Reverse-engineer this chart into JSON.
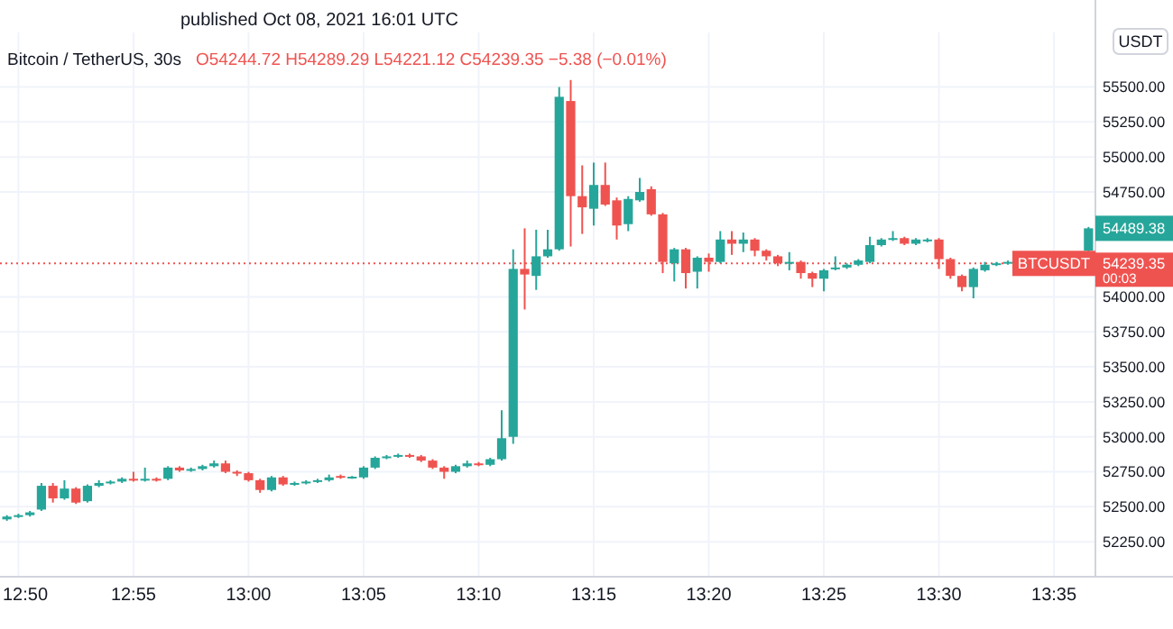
{
  "chart_data": {
    "type": "candlestick",
    "title": "Bitcoin / TetherUS, 30s",
    "subtitle": "O54244.72 H54289.29 L54221.12 C54239.35 −5.38 (−0.01%)",
    "ylabel": "USDT",
    "categories": [
      null,
      "12:50",
      null,
      null,
      null,
      null,
      null,
      null,
      null,
      null,
      null,
      "12:55",
      null,
      null,
      null,
      null,
      null,
      null,
      null,
      null,
      null,
      "13:00",
      null,
      null,
      null,
      null,
      null,
      null,
      null,
      null,
      null,
      "13:05",
      null,
      null,
      null,
      null,
      null,
      null,
      null,
      null,
      null,
      "13:10",
      null,
      null,
      null,
      null,
      null,
      null,
      null,
      null,
      null,
      "13:15",
      null,
      null,
      null,
      null,
      null,
      null,
      null,
      null,
      null,
      "13:20",
      null,
      null,
      null,
      null,
      null,
      null,
      null,
      null,
      null,
      "13:25",
      null,
      null,
      null,
      null,
      null,
      null,
      null,
      null,
      null,
      "13:30",
      null,
      null,
      null,
      null,
      null,
      null,
      null,
      null,
      null,
      "13:35",
      null,
      null,
      null
    ],
    "colors": [
      "#26a69a",
      "#26a69a",
      "#26a69a",
      "#26a69a",
      "#ef5350",
      "#26a69a",
      "#ef5350",
      "#26a69a",
      "#26a69a",
      "#26a69a",
      "#26a69a",
      "#ef5350",
      "#26a69a",
      "#ef5350",
      "#26a69a",
      "#ef5350",
      "#26a69a",
      "#26a69a",
      "#26a69a",
      "#ef5350",
      "#ef5350",
      "#ef5350",
      "#ef5350",
      "#26a69a",
      "#ef5350",
      "#26a69a",
      "#26a69a",
      "#26a69a",
      "#26a69a",
      "#ef5350",
      "#26a69a",
      "#26a69a",
      "#26a69a",
      "#26a69a",
      "#26a69a",
      "#ef5350",
      "#ef5350",
      "#ef5350",
      "#ef5350",
      "#26a69a",
      "#26a69a",
      "#ef5350",
      "#26a69a",
      "#26a69a",
      "#26a69a",
      "#ef5350",
      "#26a69a",
      "#26a69a",
      "#26a69a",
      "#ef5350",
      "#ef5350",
      "#26a69a",
      "#ef5350",
      "#ef5350",
      "#26a69a",
      "#26a69a",
      "#ef5350",
      "#ef5350",
      "#26a69a",
      "#ef5350",
      "#26a69a",
      "#ef5350",
      "#26a69a",
      "#ef5350",
      "#26a69a",
      "#ef5350",
      "#ef5350",
      "#ef5350",
      "#26a69a",
      "#ef5350",
      "#ef5350",
      "#26a69a",
      "#26a69a",
      "#26a69a",
      "#26a69a",
      "#26a69a",
      "#26a69a",
      "#26a69a",
      "#ef5350",
      "#26a69a",
      "#26a69a",
      "#ef5350",
      "#ef5350",
      "#ef5350",
      "#26a69a",
      "#26a69a",
      "#26a69a",
      "#26a69a",
      null,
      null,
      null,
      null,
      null,
      null,
      "#26a69a"
    ],
    "ohlc": [
      [
        52410,
        52440,
        52400,
        52430
      ],
      [
        52430,
        52450,
        52420,
        52440
      ],
      [
        52440,
        52470,
        52430,
        52460
      ],
      [
        52480,
        52670,
        52470,
        52650
      ],
      [
        52650,
        52670,
        52530,
        52560
      ],
      [
        52560,
        52690,
        52550,
        52630
      ],
      [
        52630,
        52640,
        52520,
        52530
      ],
      [
        52540,
        52660,
        52530,
        52650
      ],
      [
        52650,
        52690,
        52640,
        52670
      ],
      [
        52670,
        52690,
        52660,
        52680
      ],
      [
        52680,
        52710,
        52670,
        52700
      ],
      [
        52700,
        52750,
        52680,
        52690
      ],
      [
        52690,
        52780,
        52680,
        52700
      ],
      [
        52700,
        52710,
        52680,
        52690
      ],
      [
        52700,
        52790,
        52690,
        52780
      ],
      [
        52780,
        52790,
        52750,
        52760
      ],
      [
        52760,
        52780,
        52750,
        52770
      ],
      [
        52770,
        52800,
        52760,
        52790
      ],
      [
        52790,
        52830,
        52780,
        52810
      ],
      [
        52810,
        52830,
        52740,
        52750
      ],
      [
        52750,
        52760,
        52720,
        52740
      ],
      [
        52740,
        52750,
        52680,
        52690
      ],
      [
        52690,
        52700,
        52600,
        52620
      ],
      [
        52620,
        52720,
        52610,
        52710
      ],
      [
        52710,
        52720,
        52650,
        52660
      ],
      [
        52660,
        52680,
        52650,
        52670
      ],
      [
        52670,
        52690,
        52660,
        52680
      ],
      [
        52680,
        52700,
        52670,
        52690
      ],
      [
        52690,
        52730,
        52680,
        52710
      ],
      [
        52720,
        52730,
        52700,
        52710
      ],
      [
        52710,
        52720,
        52700,
        52715
      ],
      [
        52710,
        52790,
        52700,
        52780
      ],
      [
        52780,
        52860,
        52770,
        52850
      ],
      [
        52850,
        52870,
        52840,
        52860
      ],
      [
        52860,
        52880,
        52850,
        52870
      ],
      [
        52870,
        52880,
        52850,
        52860
      ],
      [
        52860,
        52870,
        52820,
        52830
      ],
      [
        52830,
        52840,
        52770,
        52780
      ],
      [
        52780,
        52790,
        52700,
        52750
      ],
      [
        52750,
        52800,
        52740,
        52790
      ],
      [
        52790,
        52830,
        52780,
        52810
      ],
      [
        52810,
        52820,
        52790,
        52800
      ],
      [
        52800,
        52850,
        52790,
        52840
      ],
      [
        52840,
        53190,
        52830,
        52990
      ],
      [
        53000,
        54340,
        52950,
        54200
      ],
      [
        54200,
        54490,
        53910,
        54160
      ],
      [
        54150,
        54480,
        54050,
        54290
      ],
      [
        54290,
        54480,
        54280,
        54340
      ],
      [
        54340,
        55500,
        54330,
        55430
      ],
      [
        55400,
        55550,
        54360,
        54720
      ],
      [
        54720,
        54940,
        54450,
        54640
      ],
      [
        54630,
        54960,
        54510,
        54800
      ],
      [
        54800,
        54960,
        54650,
        54660
      ],
      [
        54690,
        54710,
        54410,
        54510
      ],
      [
        54520,
        54720,
        54470,
        54700
      ],
      [
        54690,
        54850,
        54680,
        54750
      ],
      [
        54770,
        54790,
        54580,
        54590
      ],
      [
        54590,
        54600,
        54170,
        54250
      ],
      [
        54240,
        54350,
        54110,
        54340
      ],
      [
        54340,
        54350,
        54060,
        54170
      ],
      [
        54180,
        54290,
        54060,
        54280
      ],
      [
        54280,
        54310,
        54180,
        54250
      ],
      [
        54250,
        54470,
        54240,
        54410
      ],
      [
        54410,
        54470,
        54300,
        54380
      ],
      [
        54380,
        54460,
        54320,
        54410
      ],
      [
        54410,
        54420,
        54290,
        54330
      ],
      [
        54330,
        54340,
        54260,
        54290
      ],
      [
        54290,
        54300,
        54220,
        54240
      ],
      [
        54240,
        54320,
        54190,
        54250
      ],
      [
        54250,
        54260,
        54130,
        54170
      ],
      [
        54170,
        54180,
        54070,
        54130
      ],
      [
        54130,
        54200,
        54040,
        54190
      ],
      [
        54200,
        54290,
        54190,
        54210
      ],
      [
        54210,
        54240,
        54200,
        54230
      ],
      [
        54230,
        54270,
        54220,
        54260
      ],
      [
        54250,
        54430,
        54240,
        54370
      ],
      [
        54370,
        54420,
        54360,
        54410
      ],
      [
        54410,
        54470,
        54400,
        54420
      ],
      [
        54420,
        54430,
        54370,
        54380
      ],
      [
        54380,
        54420,
        54370,
        54410
      ],
      [
        54400,
        54420,
        54390,
        54410
      ],
      [
        54410,
        54420,
        54200,
        54270
      ],
      [
        54270,
        54280,
        54130,
        54150
      ],
      [
        54150,
        54160,
        54040,
        54070
      ],
      [
        54070,
        54210,
        53990,
        54200
      ],
      [
        54190,
        54250,
        54180,
        54230
      ],
      [
        54230,
        54250,
        54220,
        54240
      ],
      [
        54240,
        54260,
        54230,
        54250
      ],
      null,
      null,
      null,
      null,
      null,
      null,
      [
        54330,
        54500,
        54320,
        54490
      ]
    ],
    "ylim": [
      52000,
      55890
    ],
    "yticks": [
      {
        "value": 52250,
        "label": "52250.00"
      },
      {
        "value": 52500,
        "label": "52500.00"
      },
      {
        "value": 52750,
        "label": "52750.00"
      },
      {
        "value": 53000,
        "label": "53000.00"
      },
      {
        "value": 53250,
        "label": "53250.00"
      },
      {
        "value": 53500,
        "label": "53500.00"
      },
      {
        "value": 53750,
        "label": "53750.00"
      },
      {
        "value": 54000,
        "label": "54000.00"
      },
      {
        "value": 54750,
        "label": "54750.00"
      },
      {
        "value": 55000,
        "label": "55000.00"
      },
      {
        "value": 55250,
        "label": "55250.00"
      },
      {
        "value": 55500,
        "label": "55500.00"
      }
    ],
    "grid": true,
    "ref_lines": [
      {
        "axis": "y",
        "value": 54239.35,
        "label": "54239.35",
        "color": "#ef5350",
        "line_style": "dotted"
      }
    ],
    "annotations": [
      "published Oct 08, 2021 16:01 UTC",
      "BTCUSDT",
      "00:03",
      "54489.38"
    ]
  }
}
